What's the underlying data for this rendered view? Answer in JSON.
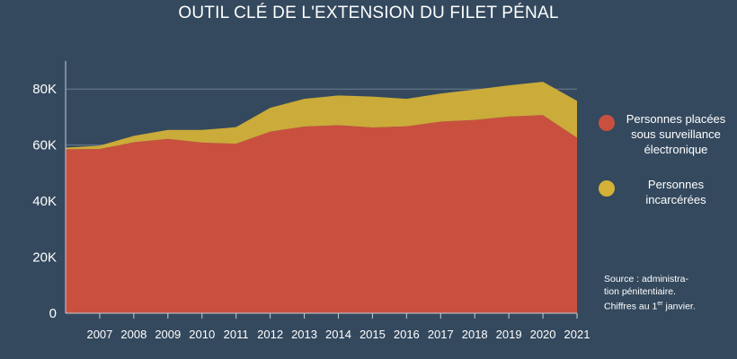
{
  "chart_data": {
    "type": "area",
    "stacked": true,
    "title": "OUTIL CLÉ DE L'EXTENSION DU FILET PÉNAL",
    "x": [
      2006,
      2007,
      2008,
      2009,
      2010,
      2011,
      2012,
      2013,
      2014,
      2015,
      2016,
      2017,
      2018,
      2019,
      2020,
      2021
    ],
    "x_tick_labels": [
      "2007",
      "2008",
      "2009",
      "2010",
      "2011",
      "2012",
      "2013",
      "2014",
      "2015",
      "2016",
      "2017",
      "2018",
      "2019",
      "2020",
      "2021"
    ],
    "series": [
      {
        "name": "Personnes placées sous surveillance électronique",
        "color": "#c9503f",
        "values": [
          58500,
          58600,
          61000,
          62200,
          60900,
          60500,
          64800,
          66600,
          67100,
          66300,
          66700,
          68400,
          69000,
          70200,
          70700,
          62600
        ]
      },
      {
        "name": "Personnes incarcérées",
        "color": "#d4b137",
        "values": [
          600,
          1200,
          2300,
          3200,
          4500,
          5900,
          8500,
          9900,
          10600,
          11000,
          9800,
          10000,
          10800,
          11100,
          11900,
          13200
        ]
      }
    ],
    "y_ticks": [
      0,
      20000,
      40000,
      60000,
      80000
    ],
    "y_tick_labels": [
      "0",
      "20K",
      "40K",
      "60K",
      "80K"
    ],
    "ylim": [
      0,
      90000
    ],
    "grid": true,
    "legend_position": "right"
  },
  "legend": {
    "items": [
      {
        "label": "Personnes placées sous surveillance électronique",
        "color": "#c9503f"
      },
      {
        "label": "Personnes incarcérées",
        "color": "#d4b137"
      }
    ]
  },
  "source": {
    "line1": "Source : administra-",
    "line2": "tion pénitentiaire.",
    "line3_pre": "Chiffres au 1",
    "line3_sup": "er",
    "line3_post": " janvier."
  }
}
